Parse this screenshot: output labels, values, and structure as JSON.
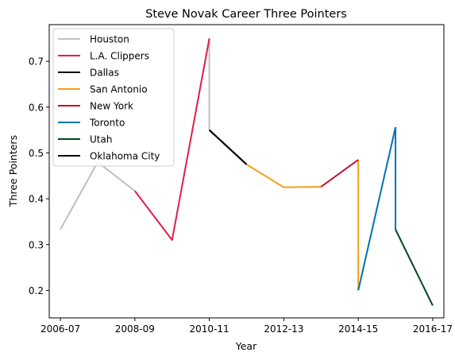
{
  "chart_data": {
    "type": "line",
    "title": "Steve Novak Career Three Pointers",
    "xlabel": "Year",
    "ylabel": "Three Pointers",
    "x_ticks": [
      "2006-07",
      "2008-09",
      "2010-11",
      "2012-13",
      "2014-15",
      "2016-17"
    ],
    "x_tick_positions": [
      0,
      2,
      4,
      6,
      8,
      10
    ],
    "xlim": [
      -0.3,
      10.3
    ],
    "y_ticks": [
      0.2,
      0.3,
      0.4,
      0.5,
      0.6,
      0.7
    ],
    "ylim": [
      0.14,
      0.78
    ],
    "grid": false,
    "legend_position": "top-left",
    "series": [
      {
        "name": "Houston",
        "color": "#bfbfbf",
        "points": [
          [
            0,
            0.333
          ],
          [
            1,
            0.48
          ],
          [
            2,
            0.417
          ]
        ]
      },
      {
        "name": "L.A. Clippers",
        "color": "#e11d48",
        "points": [
          [
            2,
            0.417
          ],
          [
            3,
            0.31
          ],
          [
            4,
            0.75
          ]
        ]
      },
      {
        "name": "Dallas",
        "color": "#000000",
        "points": [
          [
            4,
            0.55
          ],
          [
            5,
            0.475
          ]
        ]
      },
      {
        "name": "San Antonio",
        "color": "#f59e1b",
        "points": [
          [
            5,
            0.475
          ],
          [
            6,
            0.425
          ],
          [
            7,
            0.426
          ]
        ]
      },
      {
        "name": "New York",
        "color": "#c8102e",
        "points": [
          [
            7,
            0.426
          ],
          [
            8,
            0.485
          ]
        ]
      },
      {
        "name": "Toronto",
        "color": "#0072b2",
        "points": [
          [
            8,
            0.2
          ],
          [
            9,
            0.556
          ]
        ]
      },
      {
        "name": "Utah",
        "color": "#00471b",
        "points": [
          [
            9,
            0.333
          ],
          [
            10,
            0.167
          ]
        ]
      },
      {
        "name": "Oklahoma City",
        "color": "#000000",
        "points": [
          [
            4,
            0.55
          ],
          [
            5,
            0.475
          ]
        ]
      }
    ],
    "connectors": [
      {
        "color": "#bfbfbf",
        "points": [
          [
            4,
            0.75
          ],
          [
            4,
            0.55
          ]
        ]
      },
      {
        "color": "#f59e1b",
        "points": [
          [
            8,
            0.485
          ],
          [
            8,
            0.2
          ]
        ]
      },
      {
        "color": "#0072b2",
        "points": [
          [
            9,
            0.556
          ],
          [
            9,
            0.333
          ]
        ]
      }
    ]
  }
}
